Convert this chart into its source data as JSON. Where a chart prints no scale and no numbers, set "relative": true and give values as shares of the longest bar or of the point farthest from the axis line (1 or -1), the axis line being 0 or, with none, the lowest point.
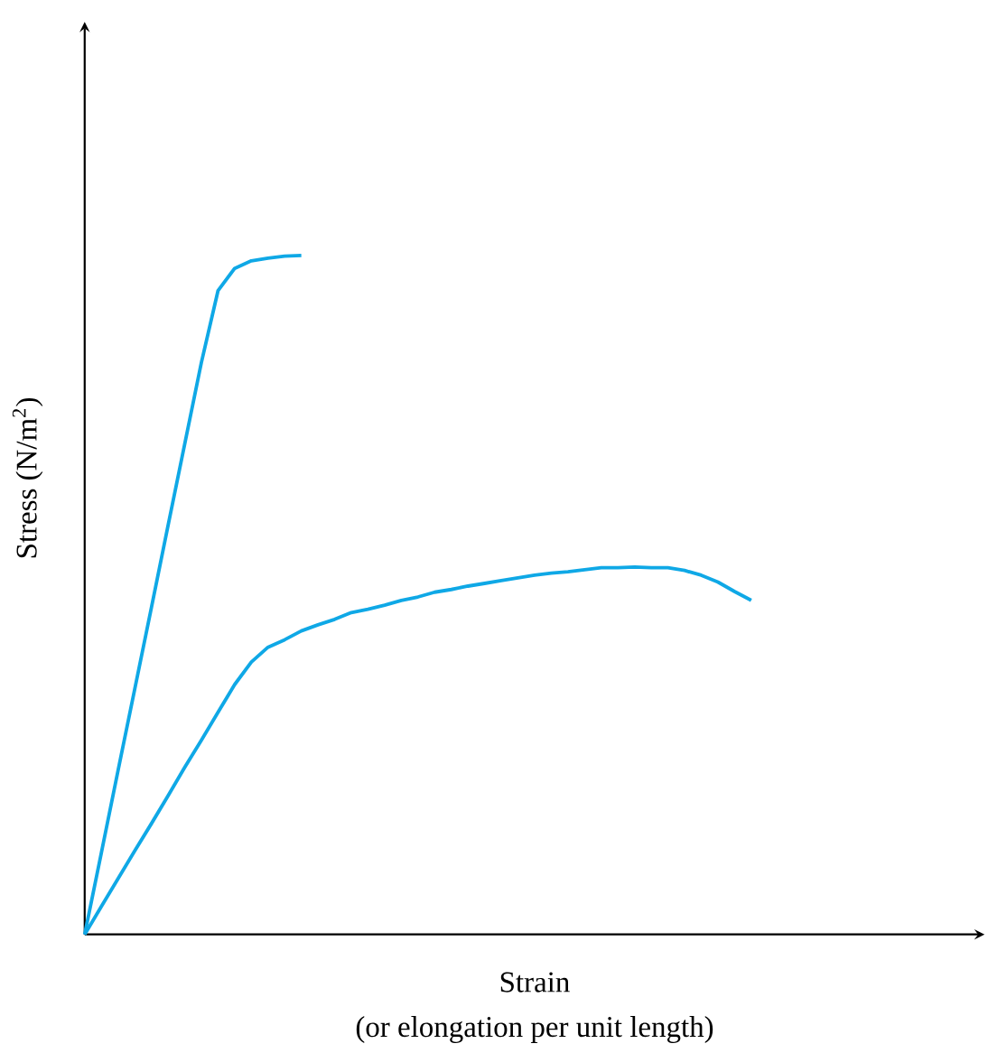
{
  "chart_data": {
    "type": "line",
    "relative": true,
    "xlabel": "Strain",
    "ylabel": "Stress (N/m$^{2}$)",
    "annotations": [
      "(or elongation per unit length)"
    ],
    "categories": [
      null,
      null,
      null,
      null,
      null,
      null,
      null,
      null,
      null,
      null,
      null,
      null,
      null,
      null,
      null,
      null,
      null,
      null,
      null,
      null,
      null,
      null,
      null,
      null,
      null,
      null,
      null,
      null,
      null,
      null,
      null,
      null,
      null,
      null,
      null,
      null,
      null,
      null,
      null,
      null,
      null
    ],
    "series": [
      {
        "color": "#0fa8e6",
        "values": [
          0,
          0.12,
          0.241,
          0.361,
          0.481,
          0.602,
          0.722,
          0.842,
          0.948,
          0.981,
          0.992,
          0.996,
          0.999,
          1,
          null,
          null,
          null,
          null,
          null,
          null,
          null,
          null,
          null,
          null,
          null,
          null,
          null,
          null,
          null,
          null,
          null,
          null,
          null,
          null,
          null,
          null,
          null,
          null,
          null,
          null,
          null
        ]
      },
      {
        "color": "#0fa8e6",
        "values": [
          0,
          0.041,
          0.082,
          0.123,
          0.163,
          0.204,
          0.246,
          0.286,
          0.327,
          0.368,
          0.401,
          0.423,
          0.434,
          0.447,
          0.456,
          0.464,
          0.474,
          0.479,
          0.485,
          0.492,
          0.497,
          0.504,
          0.508,
          0.513,
          0.517,
          0.521,
          0.525,
          0.529,
          0.532,
          0.534,
          0.537,
          0.54,
          0.54,
          0.541,
          0.54,
          0.54,
          0.536,
          0.529,
          0.519,
          0.505,
          0.492
        ]
      }
    ],
    "marker": "none",
    "line_style": "solid"
  }
}
